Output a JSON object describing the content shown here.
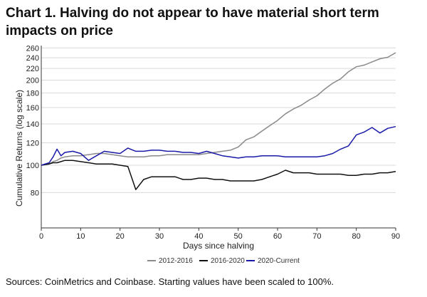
{
  "title": "Chart 1. Halving do not appear to have material short term impacts on price",
  "source": "Sources: CoinMetrics and Coinbase. Starting values have been scaled to 100%.",
  "chart_data": {
    "type": "line",
    "xlabel": "Days since halving",
    "ylabel": "Cumulative Returns (log scale)",
    "yscale": "log",
    "xlim": [
      0,
      90
    ],
    "ylim": [
      60,
      265
    ],
    "xticks": [
      0,
      10,
      20,
      30,
      40,
      50,
      60,
      70,
      80,
      90
    ],
    "yticks": [
      80,
      100,
      120,
      140,
      160,
      180,
      200,
      220,
      240,
      260
    ],
    "grid": "horizontal",
    "legend_position": "bottom",
    "x": [
      0,
      2,
      3,
      4,
      5,
      6,
      8,
      10,
      12,
      14,
      16,
      18,
      20,
      22,
      24,
      26,
      28,
      30,
      32,
      34,
      36,
      38,
      40,
      42,
      44,
      46,
      48,
      50,
      52,
      54,
      56,
      58,
      60,
      62,
      64,
      66,
      68,
      70,
      72,
      74,
      76,
      78,
      80,
      82,
      84,
      86,
      88,
      90
    ],
    "series": [
      {
        "name": "2012-2016",
        "color": "#8a8a8a",
        "values": [
          100,
          101,
          103,
          104,
          106,
          107,
          108,
          108,
          109,
          110,
          110,
          109,
          108,
          107,
          107,
          107,
          108,
          108,
          109,
          109,
          109,
          109,
          109,
          110,
          111,
          112,
          113,
          116,
          123,
          126,
          132,
          138,
          144,
          152,
          158,
          163,
          170,
          176,
          186,
          195,
          202,
          214,
          223,
          226,
          232,
          238,
          241,
          250
        ]
      },
      {
        "name": "2016-2020",
        "color": "#111111",
        "values": [
          100,
          101,
          102,
          102,
          103,
          104,
          104,
          103,
          102,
          101,
          101,
          101,
          100,
          99,
          82,
          89,
          91,
          91,
          91,
          91,
          89,
          89,
          90,
          90,
          89,
          89,
          88,
          88,
          88,
          88,
          89,
          91,
          93,
          96,
          94,
          94,
          94,
          93,
          93,
          93,
          93,
          92,
          92,
          93,
          93,
          94,
          94,
          95
        ]
      },
      {
        "name": "2020-Current",
        "color": "#1a1aa8",
        "values": [
          100,
          102,
          107,
          114,
          108,
          111,
          112,
          110,
          104,
          108,
          112,
          111,
          110,
          115,
          112,
          112,
          113,
          113,
          112,
          112,
          111,
          111,
          110,
          112,
          110,
          108,
          107,
          106,
          107,
          107,
          108,
          108,
          108,
          107,
          107,
          107,
          107,
          107,
          108,
          110,
          114,
          117,
          128,
          131,
          136,
          130,
          135,
          137
        ]
      }
    ]
  }
}
